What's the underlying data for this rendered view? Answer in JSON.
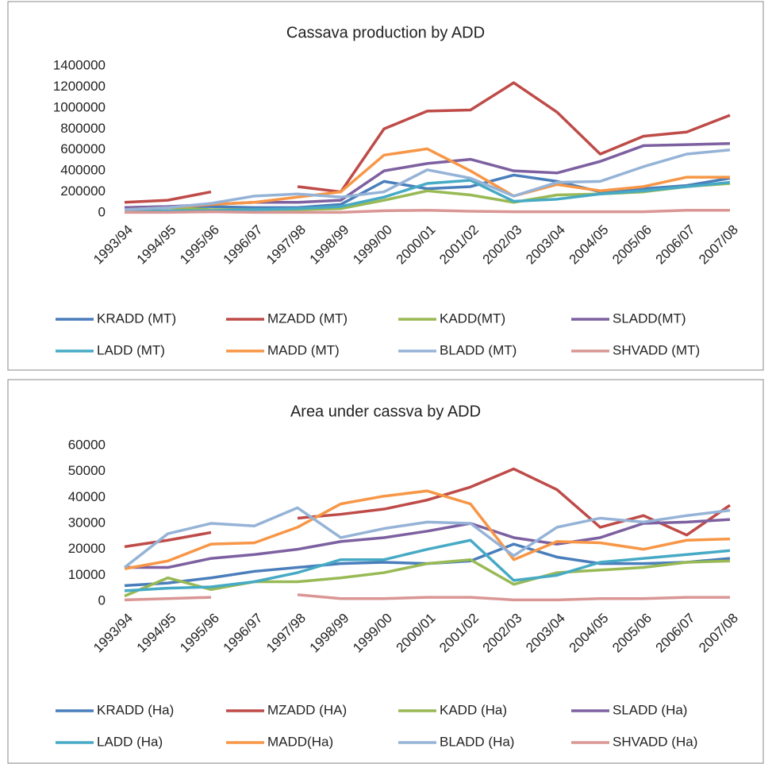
{
  "chart_data": [
    {
      "type": "line",
      "title": "Cassava production by ADD",
      "categories": [
        "1993/94",
        "1994/95",
        "1995/96",
        "1996/97",
        "1997/98",
        "1998/99",
        "1999/00",
        "2000/01",
        "2001/02",
        "2002/03",
        "2003/04",
        "2004/05",
        "2005/06",
        "2006/07",
        "2007/08"
      ],
      "ylim": [
        0,
        1400000
      ],
      "yticks": [
        0,
        200000,
        400000,
        600000,
        800000,
        1000000,
        1200000,
        1400000
      ],
      "grid": false,
      "legend": "bottom",
      "series": [
        {
          "name": "KRADD (MT)",
          "color": "#4a7ebb",
          "values": [
            50000,
            60000,
            60000,
            50000,
            50000,
            80000,
            300000,
            230000,
            250000,
            360000,
            300000,
            200000,
            230000,
            260000,
            330000
          ]
        },
        {
          "name": "MZADD (MT)",
          "color": "#be4b48",
          "values": [
            100000,
            120000,
            200000,
            null,
            250000,
            200000,
            800000,
            970000,
            980000,
            1240000,
            960000,
            560000,
            730000,
            770000,
            930000
          ]
        },
        {
          "name": "KADD(MT)",
          "color": "#98b954",
          "values": [
            20000,
            50000,
            30000,
            30000,
            30000,
            40000,
            120000,
            210000,
            170000,
            100000,
            170000,
            180000,
            200000,
            250000,
            280000
          ]
        },
        {
          "name": "SLADD(MT)",
          "color": "#7d60a0",
          "values": [
            50000,
            60000,
            80000,
            100000,
            100000,
            120000,
            400000,
            470000,
            510000,
            400000,
            380000,
            490000,
            640000,
            650000,
            660000
          ]
        },
        {
          "name": "LADD (MT)",
          "color": "#46aac5",
          "values": [
            10000,
            20000,
            20000,
            30000,
            40000,
            60000,
            150000,
            280000,
            310000,
            110000,
            130000,
            180000,
            210000,
            250000,
            290000
          ]
        },
        {
          "name": "MADD (MT)",
          "color": "#f79646",
          "values": [
            30000,
            50000,
            80000,
            100000,
            150000,
            200000,
            550000,
            610000,
            400000,
            160000,
            270000,
            210000,
            250000,
            340000,
            340000
          ]
        },
        {
          "name": "BLADD (MT)",
          "color": "#95b3d7",
          "values": [
            30000,
            50000,
            90000,
            160000,
            180000,
            150000,
            200000,
            410000,
            330000,
            160000,
            290000,
            300000,
            440000,
            560000,
            600000
          ]
        },
        {
          "name": "SHVADD (MT)",
          "color": "#d99694",
          "values": [
            5000,
            5000,
            10000,
            5000,
            5000,
            5000,
            20000,
            25000,
            15000,
            10000,
            10000,
            10000,
            10000,
            25000,
            25000
          ]
        }
      ]
    },
    {
      "type": "line",
      "title": "Area under cassva by ADD",
      "categories": [
        "1993/94",
        "1994/95",
        "1995/96",
        "1996/97",
        "1997/98",
        "1998/99",
        "1999/00",
        "2000/01",
        "2001/02",
        "2002/03",
        "2003/04",
        "2004/05",
        "2005/06",
        "2006/07",
        "2007/08"
      ],
      "ylim": [
        0,
        60000
      ],
      "yticks": [
        0,
        10000,
        20000,
        30000,
        40000,
        50000,
        60000
      ],
      "grid": false,
      "legend": "bottom",
      "series": [
        {
          "name": "KRADD (Ha)",
          "color": "#4a7ebb",
          "values": [
            6000,
            7000,
            9000,
            11500,
            13000,
            14500,
            15000,
            14500,
            15500,
            22000,
            17000,
            14500,
            14500,
            15000,
            16500
          ]
        },
        {
          "name": "MZADD (HA)",
          "color": "#be4b48",
          "values": [
            21000,
            23500,
            26500,
            null,
            32000,
            33500,
            35500,
            39000,
            44000,
            51000,
            43000,
            28500,
            33000,
            25500,
            37000
          ]
        },
        {
          "name": "KADD (Ha)",
          "color": "#98b954",
          "values": [
            2000,
            9000,
            4500,
            7500,
            7500,
            9000,
            11000,
            14500,
            16000,
            6500,
            11000,
            12000,
            13000,
            15000,
            15500
          ]
        },
        {
          "name": "SLADD (Ha)",
          "color": "#7d60a0",
          "values": [
            13000,
            13000,
            16500,
            18000,
            20000,
            23000,
            24500,
            27000,
            30000,
            24500,
            22000,
            24500,
            30000,
            30500,
            31500
          ]
        },
        {
          "name": "LADD (Ha)",
          "color": "#46aac5",
          "values": [
            4000,
            5000,
            5500,
            7500,
            11000,
            16000,
            16000,
            20000,
            23500,
            8000,
            10000,
            15000,
            16500,
            18000,
            19500
          ]
        },
        {
          "name": "MADD(Ha)",
          "color": "#f79646",
          "values": [
            12500,
            15500,
            22000,
            22500,
            28500,
            37500,
            40500,
            42500,
            37500,
            16000,
            23000,
            22500,
            20000,
            23500,
            24000
          ]
        },
        {
          "name": "BLADD (Ha)",
          "color": "#95b3d7",
          "values": [
            13000,
            26000,
            30000,
            29000,
            36000,
            24500,
            28000,
            30500,
            30000,
            17500,
            28500,
            32000,
            30500,
            33000,
            35000
          ]
        },
        {
          "name": "SHVADD (Ha)",
          "color": "#d99694",
          "values": [
            500,
            1000,
            1500,
            null,
            2500,
            1000,
            1000,
            1500,
            1500,
            500,
            500,
            1000,
            1000,
            1500,
            1500
          ]
        }
      ]
    }
  ]
}
